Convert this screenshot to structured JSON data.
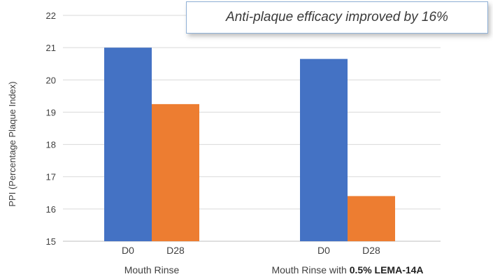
{
  "annotation": "Anti-plaque efficacy improved by 16%",
  "chart_data": {
    "type": "bar",
    "ylabel": "PPI (Percentage Plaque Index)",
    "ylim": [
      15,
      22
    ],
    "yticks": [
      15,
      16,
      17,
      18,
      19,
      20,
      21,
      22
    ],
    "grid": true,
    "colors": {
      "D0": "#4472c4",
      "D28": "#ed7d31"
    },
    "groups": [
      {
        "label": "Mouth Rinse",
        "bars": [
          {
            "label": "D0",
            "value": 21.0
          },
          {
            "label": "D28",
            "value": 19.25
          }
        ]
      },
      {
        "label_prefix": "Mouth Rinse with ",
        "label_emphasis": "0.5% LEMA-14A",
        "bars": [
          {
            "label": "D0",
            "value": 20.65
          },
          {
            "label": "D28",
            "value": 16.4
          }
        ]
      }
    ]
  }
}
